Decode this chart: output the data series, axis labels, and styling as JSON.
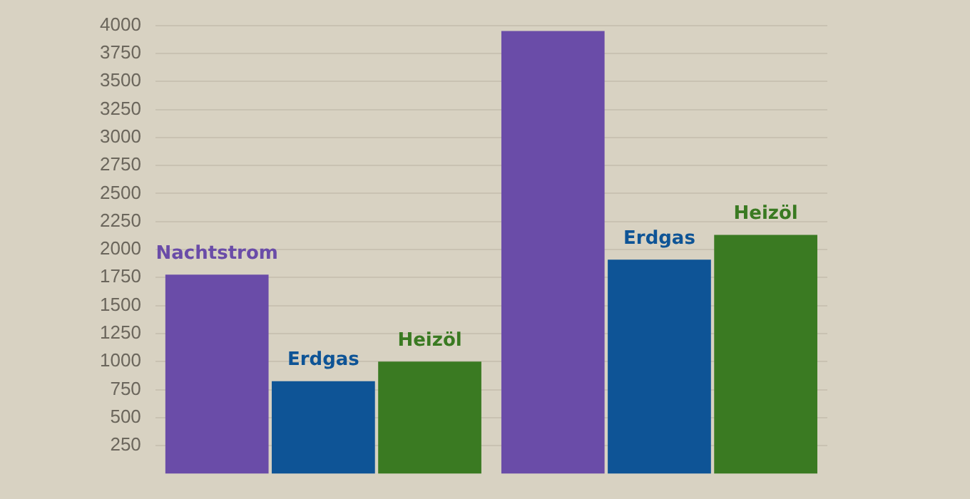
{
  "chart_data": {
    "type": "bar",
    "categories": [
      null,
      null
    ],
    "series": [
      {
        "name": "Nachtstrom",
        "color": "#6a4ca8",
        "values": [
          1775,
          3950
        ]
      },
      {
        "name": "Erdgas",
        "color": "#0e5496",
        "values": [
          825,
          1910
        ]
      },
      {
        "name": "Heizöl",
        "color": "#3a7a22",
        "values": [
          1000,
          2130
        ]
      }
    ],
    "ylim": [
      0,
      4000
    ],
    "yticks": [
      250,
      500,
      750,
      1000,
      1250,
      1500,
      1750,
      2000,
      2250,
      2500,
      2750,
      3000,
      3250,
      3500,
      3750,
      4000
    ],
    "grid": "y",
    "legend": false
  }
}
